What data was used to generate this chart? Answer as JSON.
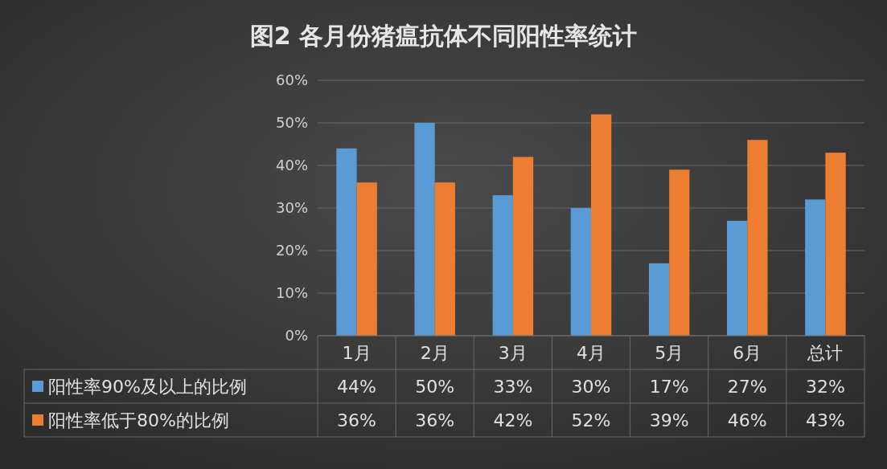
{
  "chart_data": {
    "type": "bar",
    "title": "图2 各月份猪瘟抗体不同阳性率统计",
    "categories": [
      "1月",
      "2月",
      "3月",
      "4月",
      "5月",
      "6月",
      "总计"
    ],
    "series": [
      {
        "name": "阳性率90%及以上的比例",
        "color": "#5b9bd5",
        "values": [
          44,
          50,
          33,
          30,
          17,
          27,
          32
        ],
        "value_labels": [
          "44%",
          "50%",
          "33%",
          "30%",
          "17%",
          "27%",
          "32%"
        ]
      },
      {
        "name": "阳性率低于80%的比例",
        "color": "#ed7d31",
        "values": [
          36,
          36,
          42,
          52,
          39,
          46,
          43
        ],
        "value_labels": [
          "36%",
          "36%",
          "42%",
          "52%",
          "39%",
          "46%",
          "43%"
        ]
      }
    ],
    "ylim": [
      0,
      60
    ],
    "yticks": [
      {
        "value": 0,
        "label": "0%"
      },
      {
        "value": 10,
        "label": "10%"
      },
      {
        "value": 20,
        "label": "20%"
      },
      {
        "value": 30,
        "label": "30%"
      },
      {
        "value": 40,
        "label": "40%"
      },
      {
        "value": 50,
        "label": "50%"
      },
      {
        "value": 60,
        "label": "60%"
      }
    ],
    "grid": "y",
    "legend": "bottom"
  }
}
